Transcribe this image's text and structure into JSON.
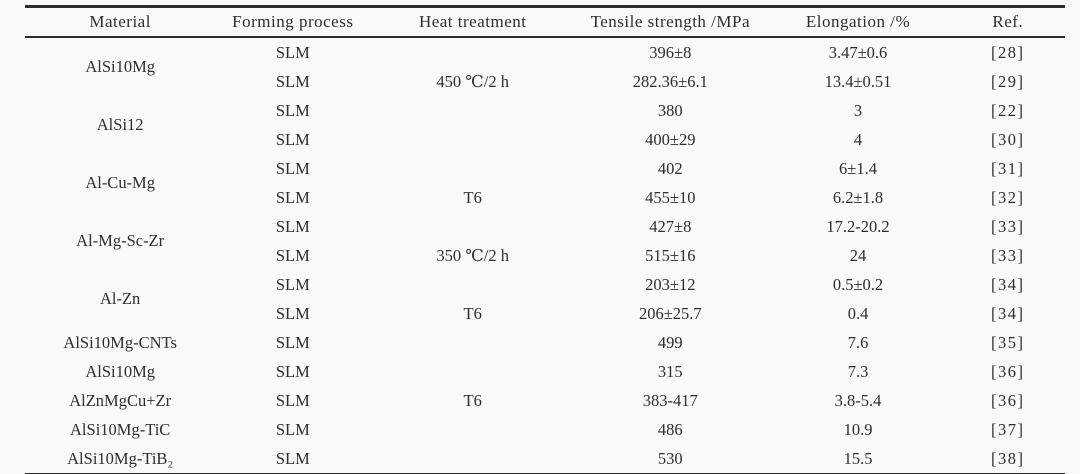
{
  "table": {
    "columns": [
      "Material",
      "Forming process",
      "Heat treatment",
      "Tensile strength /MPa",
      "Elongation /%",
      "Ref."
    ],
    "rows": [
      {
        "material": "AlSi10Mg",
        "forming": "SLM",
        "heat": "",
        "tensile": "396±8",
        "elongation": "3.47±0.6",
        "ref": "[28]"
      },
      {
        "material": "",
        "forming": "SLM",
        "heat": "450 ℃/2 h",
        "tensile": "282.36±6.1",
        "elongation": "13.4±0.51",
        "ref": "[29]"
      },
      {
        "material": "AlSi12",
        "forming": "SLM",
        "heat": "",
        "tensile": "380",
        "elongation": "3",
        "ref": "[22]"
      },
      {
        "material": "",
        "forming": "SLM",
        "heat": "",
        "tensile": "400±29",
        "elongation": "4",
        "ref": "[30]"
      },
      {
        "material": "Al-Cu-Mg",
        "forming": "SLM",
        "heat": "",
        "tensile": "402",
        "elongation": "6±1.4",
        "ref": "[31]"
      },
      {
        "material": "",
        "forming": "SLM",
        "heat": "T6",
        "tensile": "455±10",
        "elongation": "6.2±1.8",
        "ref": "[32]"
      },
      {
        "material": "Al-Mg-Sc-Zr",
        "forming": "SLM",
        "heat": "",
        "tensile": "427±8",
        "elongation": "17.2-20.2",
        "ref": "[33]"
      },
      {
        "material": "",
        "forming": "SLM",
        "heat": "350 ℃/2 h",
        "tensile": "515±16",
        "elongation": "24",
        "ref": "[33]"
      },
      {
        "material": "Al-Zn",
        "forming": "SLM",
        "heat": "",
        "tensile": "203±12",
        "elongation": "0.5±0.2",
        "ref": "[34]"
      },
      {
        "material": "",
        "forming": "SLM",
        "heat": "T6",
        "tensile": "206±25.7",
        "elongation": "0.4",
        "ref": "[34]"
      },
      {
        "material": "AlSi10Mg-CNTs",
        "forming": "SLM",
        "heat": "",
        "tensile": "499",
        "elongation": "7.6",
        "ref": "[35]"
      },
      {
        "material": "AlSi10Mg",
        "forming": "SLM",
        "heat": "",
        "tensile": "315",
        "elongation": "7.3",
        "ref": "[36]"
      },
      {
        "material": "AlZnMgCu+Zr",
        "forming": "SLM",
        "heat": "T6",
        "tensile": "383-417",
        "elongation": "3.8-5.4",
        "ref": "[36]"
      },
      {
        "material": "AlSi10Mg-TiC",
        "forming": "SLM",
        "heat": "",
        "tensile": "486",
        "elongation": "10.9",
        "ref": "[37]"
      },
      {
        "material": "AlSi10Mg-TiB₂",
        "forming": "SLM",
        "heat": "",
        "tensile": "530",
        "elongation": "15.5",
        "ref": "[38]"
      }
    ]
  }
}
